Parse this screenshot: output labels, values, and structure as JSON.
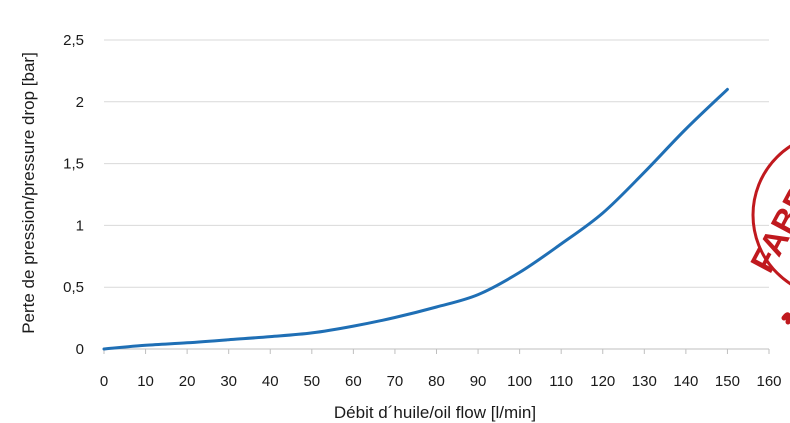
{
  "chart_data": {
    "type": "line",
    "title": "",
    "xlabel": "Débit d´huile/oil flow [l/min]",
    "ylabel": "Perte de pression/pressure drop [bar]",
    "xlim": [
      0,
      160
    ],
    "ylim": [
      0,
      2.5
    ],
    "x_ticks": [
      "0",
      "10",
      "20",
      "30",
      "40",
      "50",
      "60",
      "70",
      "80",
      "90",
      "100",
      "110",
      "120",
      "130",
      "140",
      "150",
      "160"
    ],
    "y_ticks": [
      "0",
      "0,5",
      "1",
      "1,5",
      "2",
      "2,5"
    ],
    "grid": "horizontal",
    "legend": "none",
    "series": [
      {
        "color": "#1f6fb5",
        "x": [
          0,
          10,
          20,
          30,
          40,
          50,
          60,
          70,
          80,
          90,
          100,
          110,
          120,
          130,
          140,
          150
        ],
        "y": [
          0,
          0.03,
          0.05,
          0.075,
          0.1,
          0.13,
          0.185,
          0.255,
          0.34,
          0.44,
          0.62,
          0.85,
          1.1,
          1.43,
          1.78,
          2.1
        ]
      }
    ]
  },
  "stamp": {
    "text": "FABRICA",
    "color": "#c0191e"
  }
}
